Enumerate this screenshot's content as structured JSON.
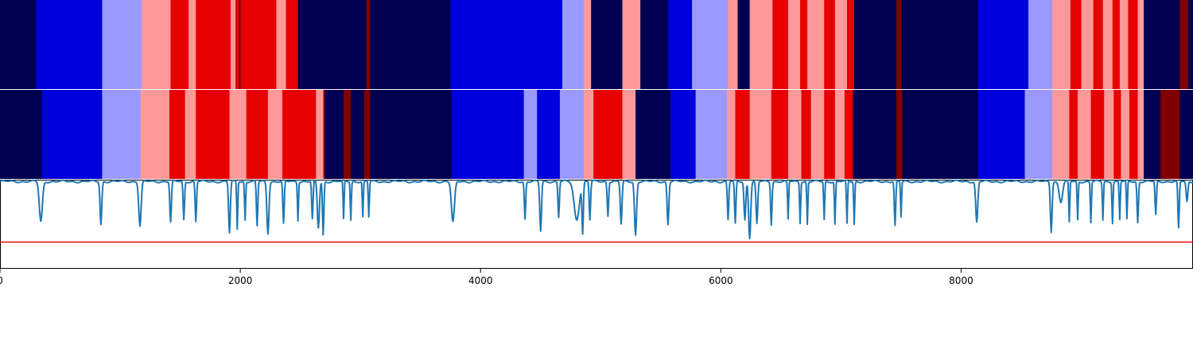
{
  "chart_data": {
    "type": "heatmap",
    "title": "",
    "xlabel": "",
    "ylabel": "",
    "xlim": [
      0,
      9930
    ],
    "x_ticks": [
      "0",
      "2000",
      "4000",
      "6000",
      "8000"
    ],
    "x_tick_values": [
      0,
      2000,
      4000,
      6000,
      8000
    ],
    "grid": false,
    "legend": "none",
    "palette": {
      "0": "#000050",
      "1": "#0000dd",
      "2": "#9999ff",
      "3": "#ff9999",
      "4": "#e60000",
      "5": "#800000"
    },
    "line_color": "#1f77b4",
    "threshold_color": "#e6191a",
    "tracks": [
      {
        "segments": [
          [
            0,
            300,
            0
          ],
          [
            300,
            850,
            1
          ],
          [
            850,
            1180,
            2
          ],
          [
            1180,
            1420,
            3
          ],
          [
            1420,
            1570,
            4
          ],
          [
            1570,
            1630,
            3
          ],
          [
            1630,
            1920,
            4
          ],
          [
            1920,
            1960,
            3
          ],
          [
            1960,
            1990,
            4
          ],
          [
            1990,
            2000,
            0
          ],
          [
            2000,
            2070,
            4
          ],
          [
            2070,
            2300,
            4
          ],
          [
            2300,
            2380,
            3
          ],
          [
            2380,
            2480,
            4
          ],
          [
            2480,
            3050,
            0
          ],
          [
            3050,
            3080,
            5
          ],
          [
            3080,
            3750,
            0
          ],
          [
            3750,
            4680,
            1
          ],
          [
            4680,
            4860,
            2
          ],
          [
            4860,
            4920,
            3
          ],
          [
            4920,
            5180,
            0
          ],
          [
            5180,
            5330,
            3
          ],
          [
            5330,
            5560,
            0
          ],
          [
            5560,
            5760,
            1
          ],
          [
            5760,
            6060,
            2
          ],
          [
            6060,
            6140,
            3
          ],
          [
            6140,
            6240,
            0
          ],
          [
            6240,
            6430,
            3
          ],
          [
            6430,
            6560,
            4
          ],
          [
            6560,
            6660,
            3
          ],
          [
            6660,
            6720,
            4
          ],
          [
            6720,
            6860,
            3
          ],
          [
            6860,
            6950,
            4
          ],
          [
            6950,
            7050,
            3
          ],
          [
            7050,
            7110,
            4
          ],
          [
            7110,
            7460,
            0
          ],
          [
            7460,
            7500,
            5
          ],
          [
            7500,
            8140,
            0
          ],
          [
            8140,
            8560,
            1
          ],
          [
            8560,
            8760,
            2
          ],
          [
            8760,
            8910,
            3
          ],
          [
            8910,
            9000,
            4
          ],
          [
            9000,
            9100,
            3
          ],
          [
            9100,
            9180,
            4
          ],
          [
            9180,
            9260,
            3
          ],
          [
            9260,
            9320,
            4
          ],
          [
            9320,
            9390,
            3
          ],
          [
            9390,
            9470,
            4
          ],
          [
            9470,
            9520,
            3
          ],
          [
            9520,
            9820,
            0
          ],
          [
            9820,
            9890,
            5
          ],
          [
            9890,
            9930,
            0
          ]
        ]
      },
      {
        "segments": [
          [
            0,
            350,
            0
          ],
          [
            350,
            850,
            1
          ],
          [
            850,
            1170,
            2
          ],
          [
            1170,
            1410,
            3
          ],
          [
            1410,
            1540,
            4
          ],
          [
            1540,
            1630,
            3
          ],
          [
            1630,
            1910,
            4
          ],
          [
            1910,
            2050,
            3
          ],
          [
            2050,
            2230,
            4
          ],
          [
            2230,
            2350,
            3
          ],
          [
            2350,
            2630,
            4
          ],
          [
            2630,
            2690,
            3
          ],
          [
            2690,
            2700,
            4
          ],
          [
            2700,
            2860,
            0
          ],
          [
            2860,
            2920,
            5
          ],
          [
            2920,
            3030,
            0
          ],
          [
            3030,
            3080,
            5
          ],
          [
            3080,
            3760,
            0
          ],
          [
            3760,
            4360,
            1
          ],
          [
            4360,
            4470,
            2
          ],
          [
            4470,
            4660,
            1
          ],
          [
            4660,
            4860,
            2
          ],
          [
            4860,
            4940,
            3
          ],
          [
            4940,
            5180,
            4
          ],
          [
            5180,
            5290,
            3
          ],
          [
            5290,
            5580,
            0
          ],
          [
            5580,
            5790,
            1
          ],
          [
            5790,
            6050,
            2
          ],
          [
            6050,
            6120,
            3
          ],
          [
            6120,
            6240,
            4
          ],
          [
            6240,
            6420,
            3
          ],
          [
            6420,
            6560,
            4
          ],
          [
            6560,
            6670,
            3
          ],
          [
            6670,
            6750,
            4
          ],
          [
            6750,
            6860,
            3
          ],
          [
            6860,
            6950,
            4
          ],
          [
            6950,
            7030,
            3
          ],
          [
            7030,
            7100,
            4
          ],
          [
            7100,
            7460,
            0
          ],
          [
            7460,
            7510,
            5
          ],
          [
            7510,
            8140,
            0
          ],
          [
            8140,
            8530,
            1
          ],
          [
            8530,
            8760,
            2
          ],
          [
            8760,
            8900,
            3
          ],
          [
            8900,
            8970,
            4
          ],
          [
            8970,
            9080,
            3
          ],
          [
            9080,
            9190,
            4
          ],
          [
            9190,
            9270,
            3
          ],
          [
            9270,
            9330,
            4
          ],
          [
            9330,
            9400,
            3
          ],
          [
            9400,
            9470,
            4
          ],
          [
            9470,
            9520,
            3
          ],
          [
            9520,
            9660,
            0
          ],
          [
            9660,
            9820,
            5
          ],
          [
            9820,
            9930,
            0
          ]
        ]
      }
    ],
    "signal": {
      "ylim": [
        0,
        1
      ],
      "threshold": 0.3,
      "baseline": 0.98,
      "dips": [
        [
          340,
          0.53,
          18
        ],
        [
          840,
          0.5,
          10
        ],
        [
          1165,
          0.48,
          14
        ],
        [
          1420,
          0.52,
          9
        ],
        [
          1530,
          0.55,
          8
        ],
        [
          1630,
          0.53,
          8
        ],
        [
          1910,
          0.4,
          10
        ],
        [
          1975,
          0.45,
          6
        ],
        [
          2040,
          0.55,
          6
        ],
        [
          2140,
          0.48,
          8
        ],
        [
          2230,
          0.4,
          12
        ],
        [
          2360,
          0.5,
          8
        ],
        [
          2480,
          0.55,
          6
        ],
        [
          2600,
          0.55,
          8
        ],
        [
          2650,
          0.46,
          12
        ],
        [
          2690,
          0.38,
          8
        ],
        [
          2860,
          0.55,
          6
        ],
        [
          2920,
          0.55,
          6
        ],
        [
          3020,
          0.58,
          6
        ],
        [
          3070,
          0.58,
          6
        ],
        [
          3770,
          0.52,
          18
        ],
        [
          4370,
          0.56,
          8
        ],
        [
          4500,
          0.42,
          10
        ],
        [
          4650,
          0.58,
          8
        ],
        [
          4800,
          0.55,
          30
        ],
        [
          4850,
          0.42,
          8
        ],
        [
          4910,
          0.55,
          8
        ],
        [
          5060,
          0.6,
          8
        ],
        [
          5170,
          0.5,
          10
        ],
        [
          5290,
          0.38,
          12
        ],
        [
          5560,
          0.5,
          10
        ],
        [
          6060,
          0.55,
          8
        ],
        [
          6120,
          0.5,
          8
        ],
        [
          6200,
          0.55,
          10
        ],
        [
          6240,
          0.35,
          12
        ],
        [
          6300,
          0.5,
          10
        ],
        [
          6420,
          0.5,
          8
        ],
        [
          6560,
          0.55,
          6
        ],
        [
          6660,
          0.52,
          6
        ],
        [
          6720,
          0.5,
          6
        ],
        [
          6860,
          0.55,
          6
        ],
        [
          6950,
          0.5,
          6
        ],
        [
          7050,
          0.5,
          6
        ],
        [
          7110,
          0.5,
          6
        ],
        [
          7450,
          0.48,
          8
        ],
        [
          7500,
          0.58,
          6
        ],
        [
          8130,
          0.52,
          12
        ],
        [
          8750,
          0.42,
          10
        ],
        [
          8830,
          0.75,
          20
        ],
        [
          8900,
          0.52,
          6
        ],
        [
          8970,
          0.55,
          6
        ],
        [
          9080,
          0.52,
          6
        ],
        [
          9180,
          0.55,
          6
        ],
        [
          9260,
          0.52,
          6
        ],
        [
          9320,
          0.55,
          6
        ],
        [
          9380,
          0.55,
          6
        ],
        [
          9470,
          0.52,
          8
        ],
        [
          9620,
          0.6,
          8
        ],
        [
          9810,
          0.45,
          8
        ],
        [
          9880,
          0.75,
          10
        ]
      ]
    }
  }
}
